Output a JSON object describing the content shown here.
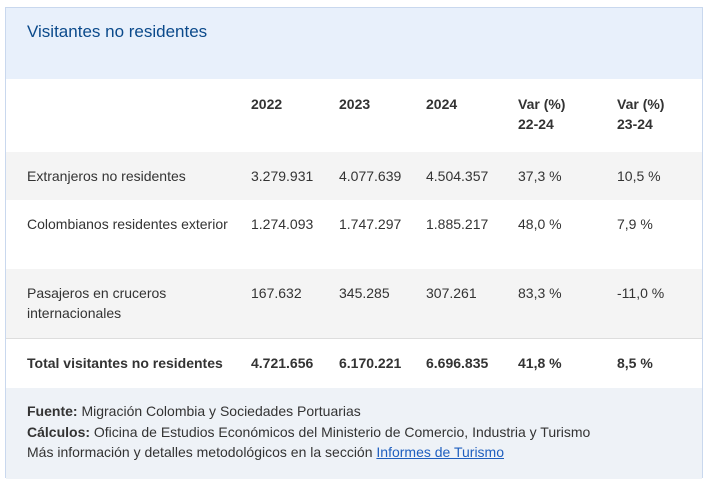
{
  "header": {
    "title": "Visitantes no residentes"
  },
  "table": {
    "columns": [
      "2022",
      "2023",
      "2024",
      "Var (%)\n22-24",
      "Var (%)\n23-24"
    ],
    "rows": [
      [
        "Extranjeros no residentes",
        "3.279.931",
        "4.077.639",
        "4.504.357",
        "37,3 %",
        "10,5 %"
      ],
      [
        "Colombianos residentes exterior",
        "1.274.093",
        "1.747.297",
        "1.885.217",
        "48,0 %",
        "7,9 %"
      ],
      [
        "Pasajeros en cruceros internacionales",
        "167.632",
        "345.285",
        "307.261",
        "83,3 %",
        "-11,0 %"
      ]
    ],
    "total": [
      "Total visitantes no residentes",
      "4.721.656",
      "6.170.221",
      "6.696.835",
      "41,8 %",
      "8,5 %"
    ]
  },
  "footer": {
    "source_label": "Fuente:",
    "source": "Migración Colombia y Sociedades Portuarias",
    "calc_label": "Cálculos:",
    "calc": "Oficina de Estudios Económicos del Ministerio de Comercio, Industria y Turismo",
    "more": "Más información y detalles metodológicos en la sección",
    "link": "Informes de Turismo"
  }
}
